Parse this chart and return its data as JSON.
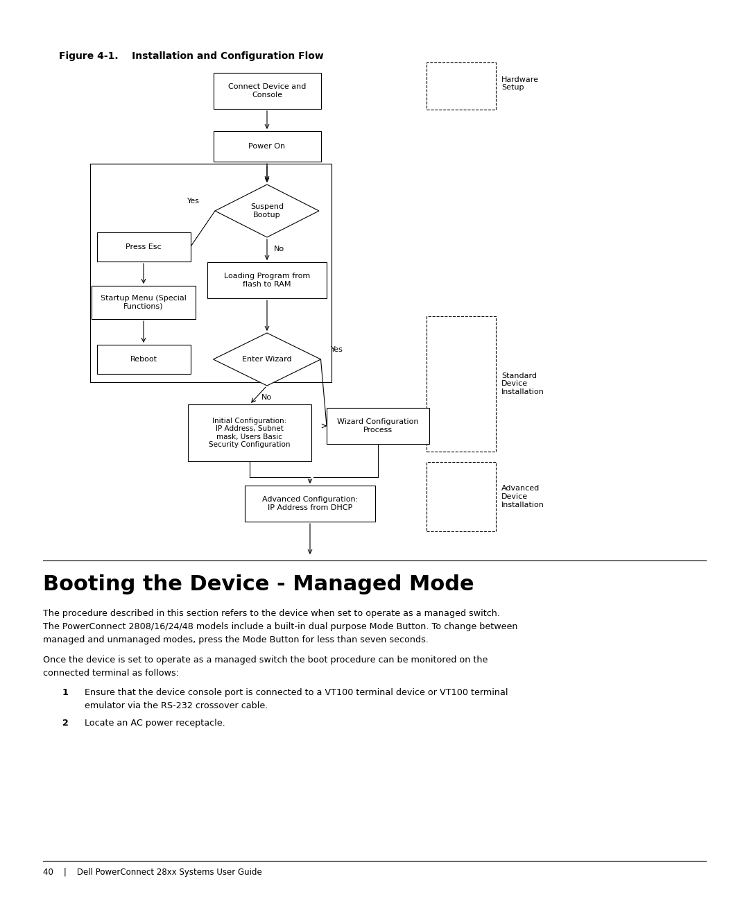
{
  "title": "Figure 4-1.    Installation and Configuration Flow",
  "bg_color": "#ffffff",
  "section_title": "Booting the Device - Managed Mode",
  "para1_line1": "The procedure described in this section refers to the device when set to operate as a managed switch.",
  "para1_line2": "The PowerConnect 2808/16/24/48 models include a built-in dual purpose Mode Button. To change between",
  "para1_line3": "managed and unmanaged modes, press the Mode Button for less than seven seconds.",
  "para2_line1": "Once the device is set to operate as a managed switch the boot procedure can be monitored on the",
  "para2_line2": "connected terminal as follows:",
  "item1_line1": "Ensure that the device console port is connected to a VT100 terminal device or VT100 terminal",
  "item1_line2": "emulator via the RS-232 crossover cable.",
  "item2": "Locate an AC power receptacle.",
  "footer": "40    |    Dell PowerConnect 28xx Systems User Guide"
}
